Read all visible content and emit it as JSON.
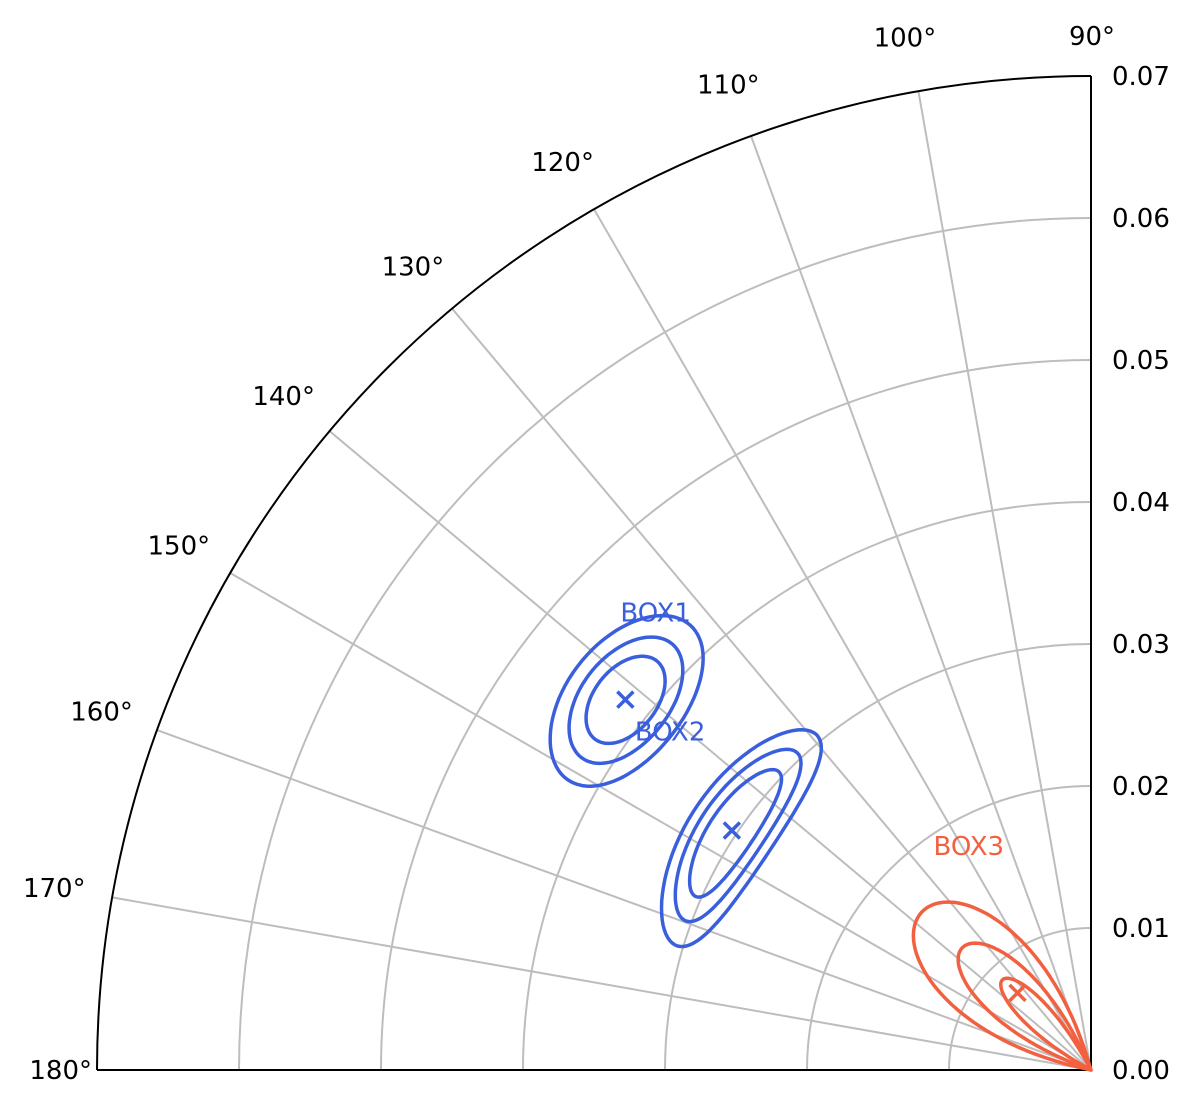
{
  "chart_data": {
    "type": "polar-contour",
    "theta_range_deg": [
      90,
      180
    ],
    "r_range": [
      0,
      0.07
    ],
    "grid": true,
    "theta_tick_labels": [
      {
        "value": 90,
        "label": "90°"
      },
      {
        "value": 100,
        "label": "100°"
      },
      {
        "value": 110,
        "label": "110°"
      },
      {
        "value": 120,
        "label": "120°"
      },
      {
        "value": 130,
        "label": "130°"
      },
      {
        "value": 140,
        "label": "140°"
      },
      {
        "value": 150,
        "label": "150°"
      },
      {
        "value": 160,
        "label": "160°"
      },
      {
        "value": 170,
        "label": "170°"
      },
      {
        "value": 180,
        "label": "180°"
      }
    ],
    "r_tick_labels": [
      {
        "value": 0.0,
        "label": "0.00"
      },
      {
        "value": 0.01,
        "label": "0.01"
      },
      {
        "value": 0.02,
        "label": "0.02"
      },
      {
        "value": 0.03,
        "label": "0.03"
      },
      {
        "value": 0.04,
        "label": "0.04"
      },
      {
        "value": 0.05,
        "label": "0.05"
      },
      {
        "value": 0.06,
        "label": "0.06"
      },
      {
        "value": 0.07,
        "label": "0.07"
      }
    ],
    "series": [
      {
        "name": "BOX1",
        "color": "#3a5fdc",
        "center": {
          "theta": 141.5,
          "r": 0.0419
        },
        "contours": [
          {
            "theta_half_width": 9.5,
            "r_half_width": 0.0041
          },
          {
            "theta_half_width": 7.0,
            "r_half_width": 0.0031
          },
          {
            "theta_half_width": 4.8,
            "r_half_width": 0.0022
          }
        ]
      },
      {
        "name": "BOX2",
        "color": "#3a5fdc",
        "center": {
          "theta": 146.3,
          "r": 0.0304
        },
        "contours": [
          {
            "theta_half_width": 17.0,
            "r_half_width": 0.003
          },
          {
            "theta_half_width": 13.5,
            "r_half_width": 0.0023
          },
          {
            "theta_half_width": 10.0,
            "r_half_width": 0.0016
          }
        ]
      },
      {
        "name": "BOX3",
        "color": "#f2603f",
        "center": {
          "theta": 133.6,
          "r": 0.0075
        },
        "contours": [
          {
            "theta_span_deg": [
              106,
              168
            ],
            "r_max": 0.0163
          },
          {
            "theta_span_deg": [
              113,
              160
            ],
            "r_max": 0.0125
          },
          {
            "theta_span_deg": [
              118,
              151
            ],
            "r_max": 0.0089
          }
        ]
      }
    ]
  }
}
